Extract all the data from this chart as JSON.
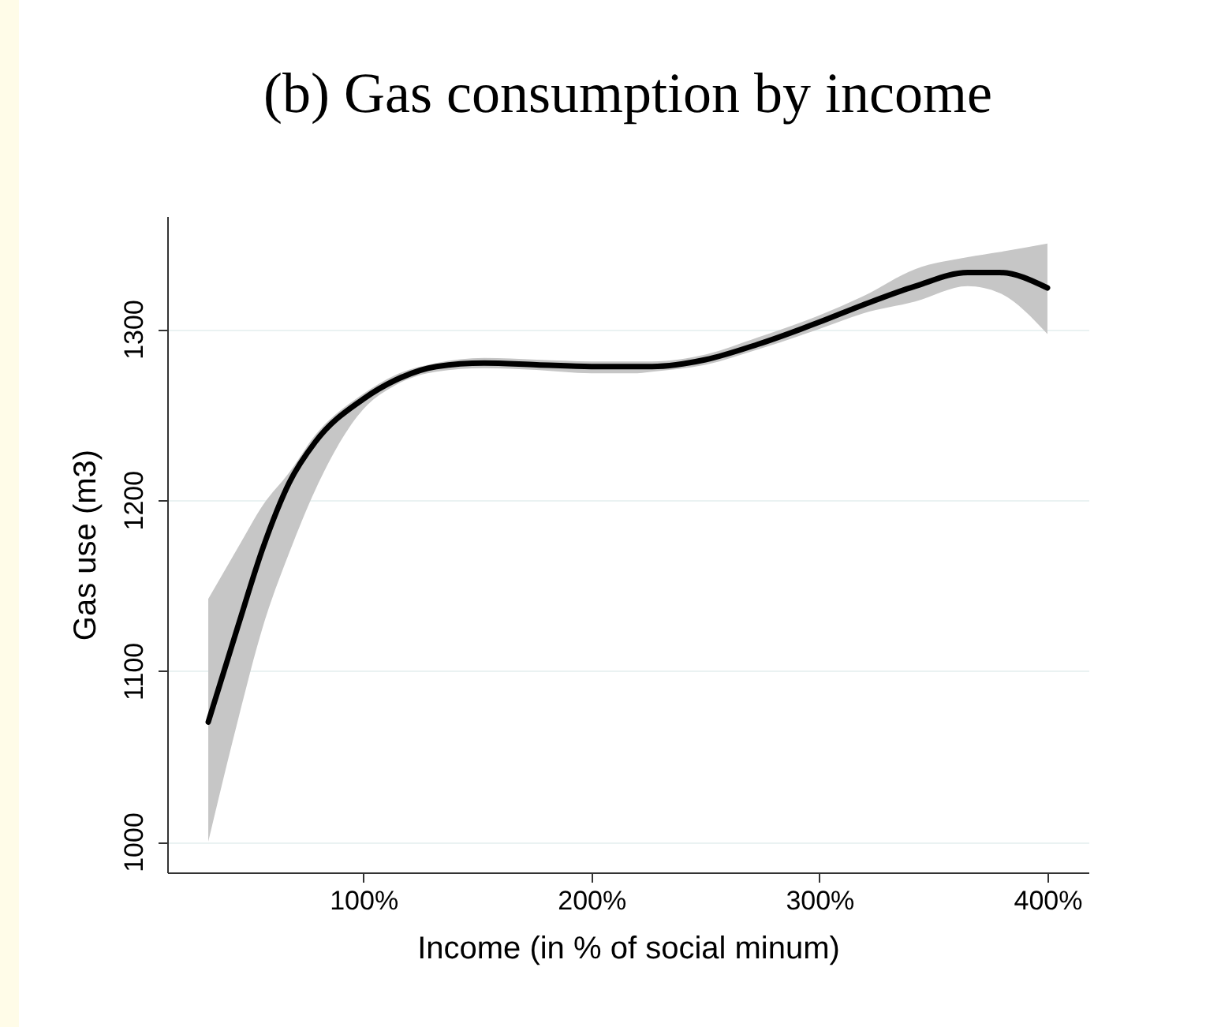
{
  "chart_data": {
    "type": "line",
    "title": "(b) Gas consumption by income",
    "xlabel": "Income (in % of social minum)",
    "ylabel": "Gas use (m3)",
    "x": [
      32,
      45,
      56,
      67.5,
      79,
      100,
      114,
      132,
      153,
      176,
      200,
      218,
      226.6,
      250,
      273,
      300,
      319,
      342,
      365,
      379,
      400
    ],
    "series": [
      {
        "color": "#000000",
        "values": [
          1070,
          1126,
          1172,
          1210,
          1234,
          1259,
          1270,
          1278,
          1280,
          1279,
          1278,
          1278,
          1278,
          1282,
          1291,
          1304,
          1314,
          1325,
          1333,
          1333,
          1324
        ],
        "lower": [
          1000,
          1071,
          1126,
          1169,
          1206,
          1253,
          1267,
          1275,
          1277,
          1276,
          1274,
          1274,
          1275,
          1279,
          1288,
          1300,
          1309,
          1316,
          1325,
          1321,
          1297
        ],
        "upper": [
          1142,
          1172,
          1197,
          1216,
          1238,
          1262,
          1273,
          1280,
          1283,
          1282,
          1281,
          1281,
          1281,
          1285,
          1295,
          1308,
          1319,
          1335,
          1342,
          1345,
          1350
        ]
      }
    ],
    "xlim": [
      14,
      418
    ],
    "ylim": [
      982,
      1366
    ],
    "xticks": [
      {
        "value": 100,
        "label": "100%"
      },
      {
        "value": 200,
        "label": "200%"
      },
      {
        "value": 300,
        "label": "300%"
      },
      {
        "value": 400,
        "label": "400%"
      }
    ],
    "yticks": [
      1000,
      1100,
      1200,
      1300
    ],
    "grid": "y"
  }
}
